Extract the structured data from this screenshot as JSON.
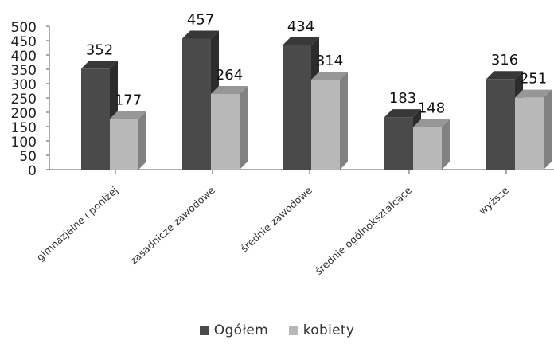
{
  "chart_data": {
    "type": "bar",
    "title": "",
    "xlabel": "",
    "ylabel": "",
    "ylim": [
      0,
      500
    ],
    "y_ticks": [
      "0",
      "50",
      "100",
      "150",
      "200",
      "250",
      "300",
      "350",
      "400",
      "450",
      "500"
    ],
    "categories": [
      "gimnazjalne i poniżej",
      "zasadnicze zawodowe",
      "średnie zawodowe",
      "średnie ogólnokształcące",
      "wyższe"
    ],
    "series": [
      {
        "name": "Ogółem",
        "values": [
          352,
          457,
          434,
          183,
          316
        ],
        "color": "#4a4a4a"
      },
      {
        "name": "kobiety",
        "values": [
          177,
          264,
          314,
          148,
          251
        ],
        "color": "#b8b8b8"
      }
    ],
    "legend_position": "bottom",
    "grid": false,
    "style": "3d-bar"
  }
}
